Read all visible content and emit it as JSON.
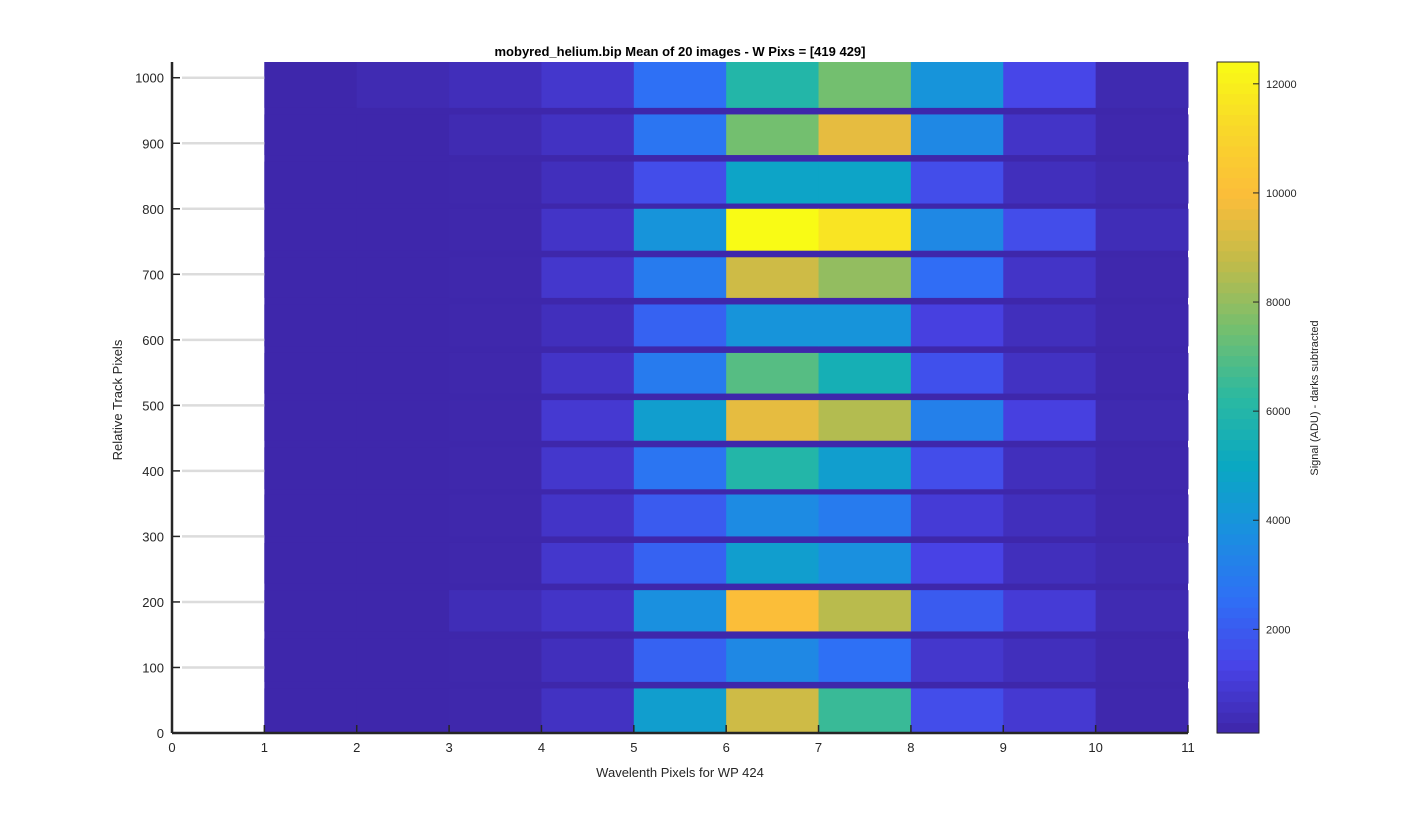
{
  "chart_data": {
    "type": "heatmap",
    "title": "mobyred_helium.bip  Mean of 20 images - W Pixs = [419  429]",
    "xlabel": "Wavelenth Pixels for WP 424",
    "ylabel": "Relative Track Pixels",
    "xlim": [
      0,
      11
    ],
    "ylim": [
      0,
      1024
    ],
    "x_ticks": [
      0,
      1,
      2,
      3,
      4,
      5,
      6,
      7,
      8,
      9,
      10,
      11
    ],
    "y_ticks": [
      0,
      100,
      200,
      300,
      400,
      500,
      600,
      700,
      800,
      900,
      1000
    ],
    "x_tick_labels": [
      "0",
      "1",
      "2",
      "3",
      "4",
      "5",
      "6",
      "7",
      "8",
      "9",
      "10",
      "11"
    ],
    "y_tick_labels": [
      "0",
      "100",
      "200",
      "300",
      "400",
      "500",
      "600",
      "700",
      "800",
      "900",
      "1000"
    ],
    "grid": "horizontal",
    "columns": [
      1,
      2,
      3,
      4,
      5,
      6,
      7,
      8,
      9,
      10
    ],
    "bands": [
      {
        "track_range": [
          0,
          68
        ],
        "values": [
          150,
          160,
          170,
          600,
          4500,
          9000,
          6500,
          1600,
          900,
          200
        ]
      },
      {
        "track_range": [
          78,
          144
        ],
        "values": [
          150,
          160,
          170,
          500,
          2200,
          3500,
          2600,
          800,
          500,
          200
        ]
      },
      {
        "track_range": [
          155,
          218
        ],
        "values": [
          150,
          160,
          400,
          700,
          3800,
          10000,
          8600,
          2000,
          1000,
          300
        ]
      },
      {
        "track_range": [
          228,
          290
        ],
        "values": [
          150,
          160,
          170,
          800,
          2200,
          4500,
          3800,
          1300,
          500,
          250
        ]
      },
      {
        "track_range": [
          300,
          364
        ],
        "values": [
          150,
          160,
          170,
          700,
          2000,
          3600,
          3000,
          1000,
          500,
          200
        ]
      },
      {
        "track_range": [
          372,
          436
        ],
        "values": [
          150,
          160,
          170,
          800,
          2800,
          6000,
          4500,
          1600,
          500,
          200
        ]
      },
      {
        "track_range": [
          446,
          508
        ],
        "values": [
          150,
          160,
          170,
          900,
          4500,
          9500,
          8500,
          3200,
          1200,
          250
        ]
      },
      {
        "track_range": [
          518,
          580
        ],
        "values": [
          150,
          160,
          170,
          700,
          3000,
          7000,
          5500,
          1700,
          600,
          200
        ]
      },
      {
        "track_range": [
          590,
          654
        ],
        "values": [
          150,
          160,
          170,
          500,
          2200,
          4000,
          4000,
          1200,
          500,
          200
        ]
      },
      {
        "track_range": [
          664,
          726
        ],
        "values": [
          150,
          160,
          170,
          800,
          3000,
          9000,
          8000,
          2500,
          700,
          200
        ]
      },
      {
        "track_range": [
          736,
          800
        ],
        "values": [
          150,
          160,
          170,
          700,
          4000,
          12400,
          11600,
          3500,
          1600,
          400
        ]
      },
      {
        "track_range": [
          808,
          872
        ],
        "values": [
          150,
          160,
          170,
          500,
          1600,
          4800,
          4800,
          1600,
          500,
          250
        ]
      },
      {
        "track_range": [
          882,
          944
        ],
        "values": [
          150,
          160,
          300,
          600,
          2800,
          7500,
          9500,
          3500,
          700,
          200
        ]
      },
      {
        "track_range": [
          954,
          1024
        ],
        "values": [
          150,
          300,
          450,
          800,
          2600,
          6000,
          7500,
          4000,
          1400,
          250
        ]
      }
    ],
    "colorbar": {
      "label": "Signal (ADU) - darks subtracted",
      "range": [
        100,
        12400
      ],
      "ticks": [
        2000,
        4000,
        6000,
        8000,
        10000,
        12000
      ],
      "tick_labels": [
        "2000",
        "4000",
        "6000",
        "8000",
        "10000",
        "12000"
      ]
    },
    "background_value": 150,
    "colormap": [
      "#3e26a8",
      "#4843e7",
      "#2f6ff6",
      "#1a90df",
      "#0aa8c2",
      "#2ab9a1",
      "#72bf70",
      "#c0bb4a",
      "#fbbd3a",
      "#f9d72a",
      "#f9fb15"
    ]
  }
}
